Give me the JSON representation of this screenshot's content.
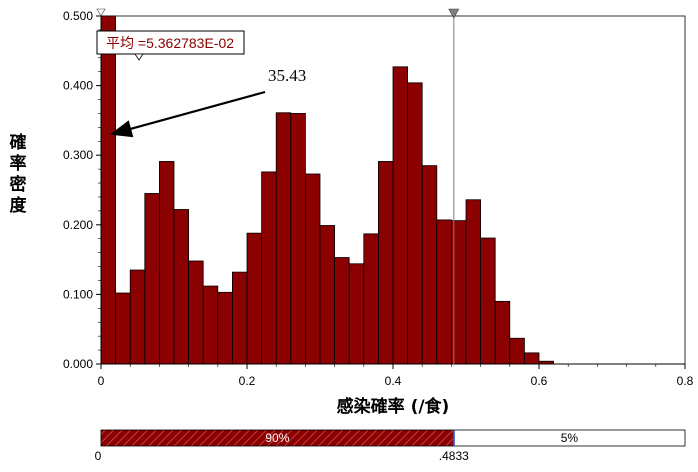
{
  "chart_data": {
    "type": "bar",
    "title": "",
    "xlabel": "感染確率 (/食)",
    "ylabel": "確率密度",
    "xlim": [
      0,
      0.8
    ],
    "ylim": [
      0,
      0.5
    ],
    "x_ticks": [
      "0",
      "0.2",
      "0.4",
      "0.6",
      "0.8"
    ],
    "y_ticks": [
      "0.000",
      "0.100",
      "0.200",
      "0.300",
      "0.400",
      "0.500"
    ],
    "bin_width": 0.02,
    "values": [
      0.5,
      0.102,
      0.135,
      0.245,
      0.291,
      0.222,
      0.148,
      0.112,
      0.103,
      0.132,
      0.188,
      0.276,
      0.361,
      0.36,
      0.273,
      0.199,
      0.153,
      0.144,
      0.187,
      0.291,
      0.427,
      0.404,
      0.285,
      0.207,
      0.206,
      0.236,
      0.181,
      0.09,
      0.037,
      0.016,
      0.004
    ],
    "bar_color": "#8b0000",
    "mean_label": "平均 =5.362783E-02",
    "annotation": "35.43",
    "marker_x": 0.4833,
    "range_bar": {
      "left_pct": "90%",
      "right_pct": "5%",
      "left_value": "0",
      "right_value": ".4833",
      "split": 0.4833
    }
  }
}
